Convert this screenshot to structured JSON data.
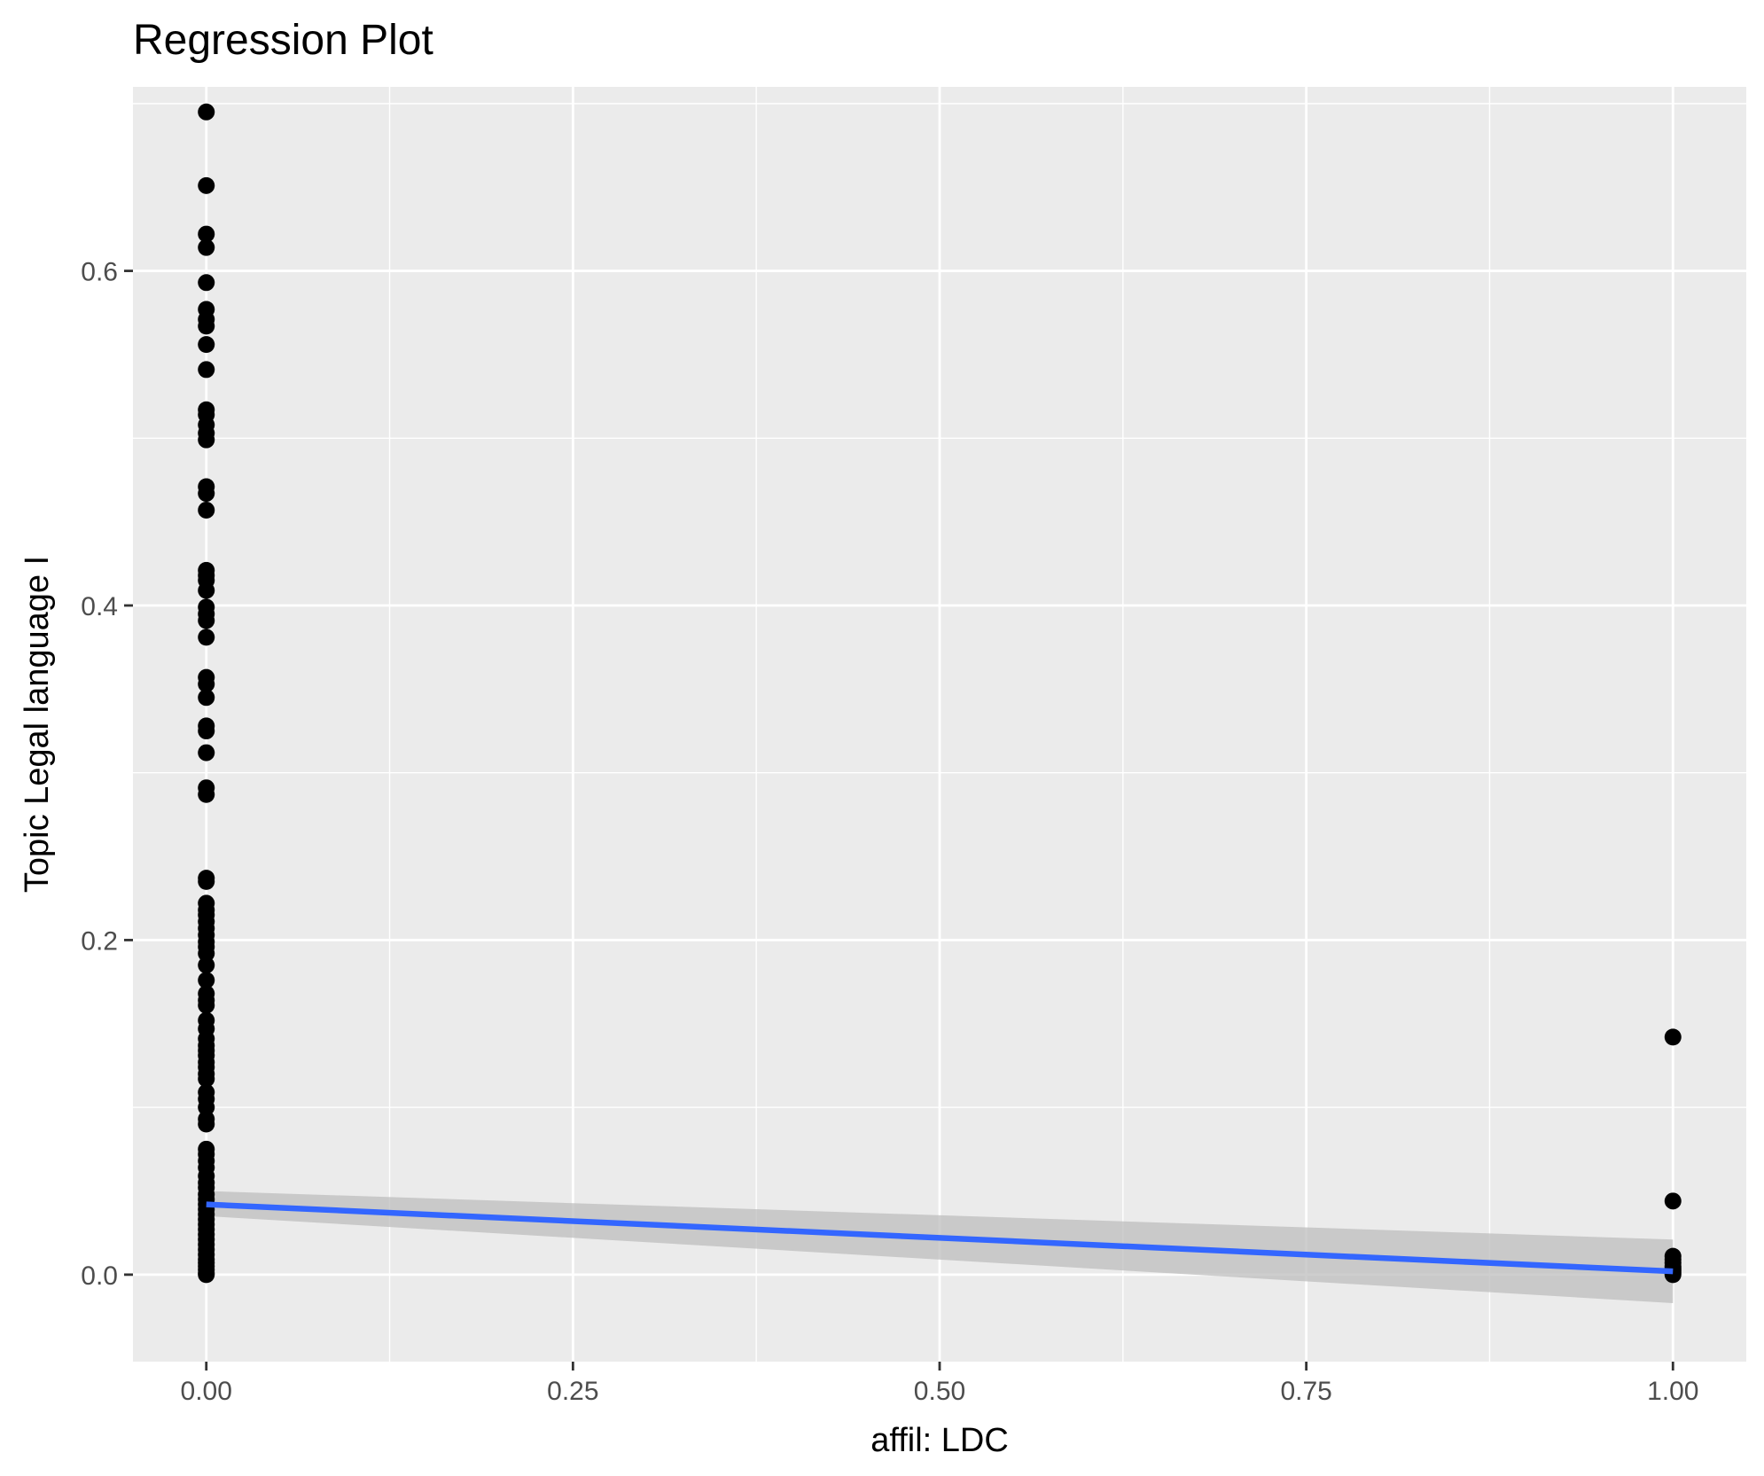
{
  "chart_data": {
    "type": "scatter",
    "title": "Regression Plot",
    "xlabel": "affil: LDC",
    "ylabel": "Topic Legal language I",
    "xlim": [
      -0.05,
      1.05
    ],
    "ylim": [
      -0.052,
      0.71
    ],
    "x_ticks": [
      "0.00",
      "0.25",
      "0.50",
      "0.75",
      "1.00"
    ],
    "y_ticks": [
      "0.0",
      "0.2",
      "0.4",
      "0.6"
    ],
    "grid": true,
    "legend": "none",
    "colors": {
      "panel": "#ebebeb",
      "grid": "#ffffff",
      "points": "#000000",
      "line": "#3366ff",
      "ribbon": "#bdbdbd",
      "tick": "#333333"
    },
    "points": {
      "x0": [
        0.695,
        0.651,
        0.622,
        0.614,
        0.593,
        0.577,
        0.571,
        0.567,
        0.556,
        0.541,
        0.517,
        0.514,
        0.508,
        0.503,
        0.499,
        0.471,
        0.467,
        0.457,
        0.421,
        0.418,
        0.415,
        0.409,
        0.399,
        0.395,
        0.391,
        0.381,
        0.357,
        0.353,
        0.345,
        0.328,
        0.325,
        0.312,
        0.291,
        0.287,
        0.237,
        0.235,
        0.222,
        0.218,
        0.215,
        0.211,
        0.207,
        0.203,
        0.199,
        0.196,
        0.192,
        0.185,
        0.176,
        0.168,
        0.164,
        0.161,
        0.152,
        0.147,
        0.141,
        0.137,
        0.134,
        0.131,
        0.127,
        0.124,
        0.12,
        0.117,
        0.109,
        0.105,
        0.1,
        0.093,
        0.09,
        0.075,
        0.072,
        0.068,
        0.064,
        0.059,
        0.055,
        0.052,
        0.048,
        0.045,
        0.042,
        0.039,
        0.036,
        0.033,
        0.03,
        0.027,
        0.024,
        0.021,
        0.018,
        0.015,
        0.012,
        0.009,
        0.007,
        0.005,
        0.003,
        0.001,
        0.0
      ],
      "x1": [
        0.142,
        0.044,
        0.011,
        0.009,
        0.007,
        0.005,
        0.004,
        0.003,
        0.002,
        0.001,
        0.0
      ]
    },
    "regression": {
      "x": [
        0,
        1
      ],
      "y": [
        0.042,
        0.002
      ],
      "ci_lower": [
        0.035,
        -0.017
      ],
      "ci_upper": [
        0.05,
        0.021
      ]
    }
  }
}
